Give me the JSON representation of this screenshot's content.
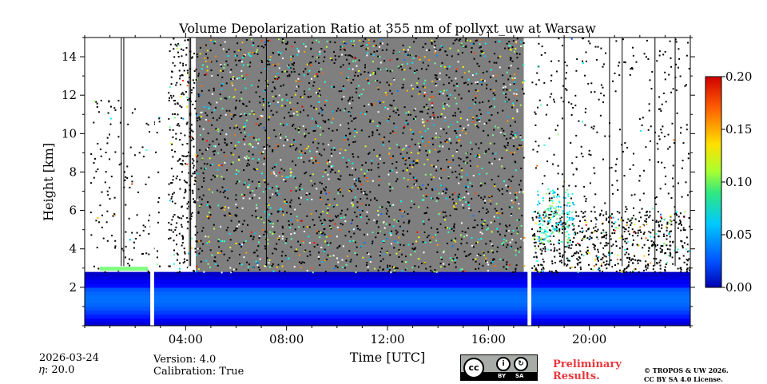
{
  "chart_data": {
    "type": "heatmap",
    "title": "Volume Depolarization Ratio at 355 nm of pollyxt_uw at Warsaw",
    "xlabel": "Time [UTC]",
    "ylabel": "Height [km]",
    "xlim_hours": [
      0,
      24
    ],
    "ylim_km": [
      0,
      15
    ],
    "xticks": [
      {
        "value": 4,
        "label": "04:00"
      },
      {
        "value": 8,
        "label": "08:00"
      },
      {
        "value": 12,
        "label": "12:00"
      },
      {
        "value": 16,
        "label": "16:00"
      },
      {
        "value": 20,
        "label": "20:00"
      }
    ],
    "yticks": [
      {
        "value": 2,
        "label": "2"
      },
      {
        "value": 4,
        "label": "4"
      },
      {
        "value": 6,
        "label": "6"
      },
      {
        "value": 8,
        "label": "8"
      },
      {
        "value": 10,
        "label": "10"
      },
      {
        "value": 12,
        "label": "12"
      },
      {
        "value": 14,
        "label": "14"
      }
    ],
    "colorbar": {
      "min": 0.0,
      "max": 0.2,
      "colormap": "jet",
      "ticks": [
        {
          "value": 0.0,
          "label": "0.00"
        },
        {
          "value": 0.05,
          "label": "0.05"
        },
        {
          "value": 0.1,
          "label": "0.10"
        },
        {
          "value": 0.15,
          "label": "0.15"
        },
        {
          "value": 0.2,
          "label": "0.20"
        }
      ]
    },
    "features": {
      "boundary_layer_top_km": 2.8,
      "data_gaps_hours": [
        [
          2.6,
          2.75
        ],
        [
          17.55,
          17.7
        ]
      ],
      "noisy_daytime_hours": [
        4.4,
        17.4
      ],
      "dust_layer": {
        "time_hours": [
          17.9,
          19.4
        ],
        "height_km": [
          4.3,
          7.2
        ],
        "value": 0.08
      },
      "aerosol_layer_top": {
        "time_hours": [
          0.6,
          2.5
        ],
        "height_km": 2.95,
        "value": 0.1
      }
    }
  },
  "meta": {
    "date": "2026-03-24",
    "eta": "𝜂: 20.0",
    "version": "Version: 4.0",
    "calibration": "Calibration: True",
    "preliminary": "Preliminary Results.",
    "copyright_line1": "© TROPOS & UW 2026.",
    "copyright_line2": "CC BY SA 4.0 License."
  },
  "license_badge": {
    "cc": "cc",
    "by": "BY",
    "sa": "SA"
  },
  "colors": {
    "preliminary": "#e8383d"
  }
}
